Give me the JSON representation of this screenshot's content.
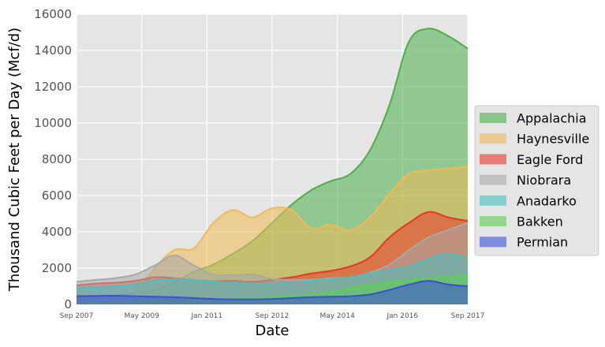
{
  "chart_data": {
    "type": "area",
    "xlabel": "Date",
    "ylabel": "Thousand Cubic Feet per Day (Mcf/d)",
    "ylim": [
      0,
      16000
    ],
    "y_ticks": [
      0,
      2000,
      4000,
      6000,
      8000,
      10000,
      12000,
      14000,
      16000
    ],
    "x_range": [
      "2007-09",
      "2017-09"
    ],
    "x_tick_labels": [
      "Sep 2007",
      "May 2009",
      "Jan 2011",
      "Sep 2012",
      "May 2014",
      "Jan 2016",
      "Sep 2017"
    ],
    "x": [
      "2007-09",
      "2008-03",
      "2008-09",
      "2009-03",
      "2009-09",
      "2010-03",
      "2010-09",
      "2011-03",
      "2011-09",
      "2012-03",
      "2012-09",
      "2013-03",
      "2013-09",
      "2014-03",
      "2014-09",
      "2015-03",
      "2015-09",
      "2016-03",
      "2016-09",
      "2017-03",
      "2017-09"
    ],
    "grid": true,
    "legend_position": "right",
    "series": [
      {
        "name": "Appalachia",
        "color": "#4daf4a",
        "values": [
          500,
          450,
          500,
          650,
          800,
          1200,
          1800,
          2200,
          2800,
          3500,
          4500,
          5500,
          6300,
          6800,
          7200,
          8500,
          11000,
          14500,
          15200,
          14800,
          14100
        ]
      },
      {
        "name": "Haynesville",
        "color": "#f0b956",
        "values": [
          100,
          120,
          150,
          600,
          2000,
          3000,
          3100,
          4500,
          5200,
          4800,
          5300,
          5200,
          4200,
          4400,
          4100,
          4800,
          6100,
          7200,
          7400,
          7500,
          7600
        ]
      },
      {
        "name": "Eagle Ford",
        "color": "#e8362a",
        "values": [
          1050,
          1150,
          1200,
          1300,
          1500,
          1450,
          1350,
          1280,
          1300,
          1250,
          1350,
          1500,
          1700,
          1850,
          2100,
          2600,
          3700,
          4500,
          5100,
          4800,
          4600
        ]
      },
      {
        "name": "Niobrara",
        "color": "#a8a8a8",
        "values": [
          1250,
          1350,
          1450,
          1650,
          2150,
          2700,
          2150,
          1650,
          1600,
          1650,
          1400,
          1350,
          1350,
          1450,
          1500,
          1750,
          2200,
          3000,
          3700,
          4100,
          4500
        ]
      },
      {
        "name": "Anadarko",
        "color": "#48c0c0",
        "values": [
          900,
          950,
          1000,
          1100,
          1300,
          1400,
          1350,
          1250,
          1200,
          1150,
          1150,
          1200,
          1300,
          1400,
          1500,
          1700,
          1900,
          2100,
          2500,
          2800,
          2500
        ]
      },
      {
        "name": "Bakken",
        "color": "#5cce52",
        "values": [
          80,
          90,
          100,
          150,
          200,
          230,
          250,
          270,
          300,
          340,
          380,
          450,
          550,
          700,
          900,
          1100,
          1250,
          1350,
          1450,
          1550,
          1600
        ]
      },
      {
        "name": "Permian",
        "color": "#3a4fd6",
        "values": [
          450,
          470,
          480,
          450,
          420,
          400,
          350,
          300,
          280,
          280,
          300,
          350,
          400,
          420,
          450,
          550,
          800,
          1100,
          1300,
          1100,
          1000
        ]
      }
    ]
  }
}
